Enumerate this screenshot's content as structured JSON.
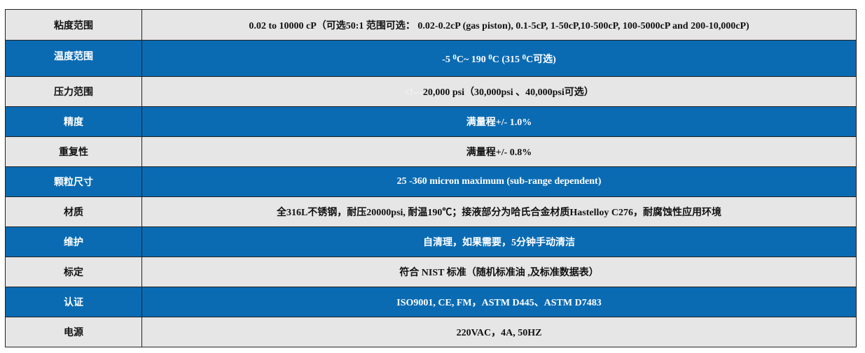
{
  "colors": {
    "row_gray": "#e6e6e6",
    "row_blue": "#0a6bb3"
  },
  "rows": [
    {
      "label": "粘度范围",
      "value": "0.02 to 10000 cP（可选50:1 范围可选：  0.02-0.2cP (gas piston), 0.1-5cP, 1-50cP,10-500cP, 100-5000cP and 200-10,000cP)"
    },
    {
      "label": "温度范围",
      "value_parts": [
        "-5 ",
        "0",
        "C~ 190 ",
        "0",
        "C (315 ",
        "0",
        "C可选)"
      ]
    },
    {
      "label": "压力范围",
      "prefix": "<!—",
      "value": "20,000 psi（30,000psi 、40,000psi可选）"
    },
    {
      "label": "精度",
      "value": "满量程+/- 1.0%"
    },
    {
      "label": "重复性",
      "value": "满量程+/- 0.8%"
    },
    {
      "label": "颗粒尺寸",
      "value": "25 -360 micron maximum (sub-range dependent)"
    },
    {
      "label": "材质",
      "value": "全316L不锈钢，耐压20000psi, 耐温190℃；接液部分为哈氏合金材质Hastelloy C276，耐腐蚀性应用环境"
    },
    {
      "label": "维护",
      "value": "自清理，如果需要，5分钟手动清洁"
    },
    {
      "label": "标定",
      "value": "符合 NIST 标准（随机标准油 ,及标准数据表）"
    },
    {
      "label": "认证",
      "value": "ISO9001, CE, FM，ASTM D445、ASTM D7483"
    },
    {
      "label": "电源",
      "value": "220VAC，4A, 50HZ"
    }
  ]
}
